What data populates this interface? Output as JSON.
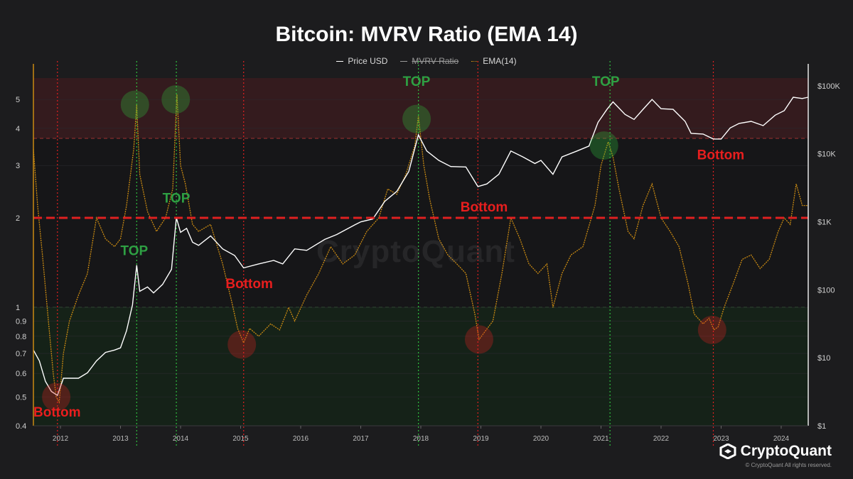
{
  "title": "Bitcoin: MVRV Ratio (EMA 14)",
  "legend": [
    {
      "label": "Price USD",
      "style": "solid-white",
      "struck": false
    },
    {
      "label": "MVRV Ratio",
      "style": "solid-grey",
      "struck": true
    },
    {
      "label": "EMA(14)",
      "style": "dotted-orange",
      "struck": false
    }
  ],
  "watermark": "CryptoQuant",
  "logo_text": "CryptoQuant",
  "copyright": "© CryptoQuant All rights reserved.",
  "colors": {
    "background": "#1c1c1e",
    "price": "#ffffff",
    "ema": "#c98a12",
    "top_zone": "#3a1c20",
    "bottom_zone": "#152419",
    "threshold_line": "#e02020",
    "bottom_marker": "#e02020",
    "top_marker": "#2fbf3f",
    "top_label": "#2ea043",
    "bottom_label": "#e81e1e"
  },
  "chart_data": {
    "type": "line",
    "x_axis": {
      "ticks": [
        "2012",
        "2013",
        "2014",
        "2015",
        "2016",
        "2017",
        "2018",
        "2019",
        "2020",
        "2021",
        "2022",
        "2023",
        "2024"
      ],
      "range": [
        2011.55,
        2024.45
      ]
    },
    "y_left": {
      "scale": "log",
      "ticks": [
        0.4,
        0.5,
        0.6,
        0.7,
        0.8,
        0.9,
        1,
        2,
        3,
        4,
        5
      ],
      "tick_labels": [
        "0.4",
        "0.5",
        "0.6",
        "0.7",
        "0.8",
        "0.9",
        "1",
        "2",
        "3",
        "4",
        "5"
      ],
      "range": [
        0.4,
        5.9
      ]
    },
    "y_right": {
      "scale": "log",
      "ticks": [
        1,
        10,
        100,
        1000,
        10000,
        100000
      ],
      "tick_labels": [
        "$1",
        "$10",
        "$100",
        "$1K",
        "$10K",
        "$100K"
      ],
      "range": [
        1,
        130000
      ]
    },
    "zones": [
      {
        "axis": "left",
        "from": 3.7,
        "to": 5.9,
        "kind": "top"
      },
      {
        "axis": "left",
        "from": 0.4,
        "to": 1.0,
        "kind": "bottom"
      }
    ],
    "threshold": {
      "axis": "left",
      "value": 2
    },
    "series": [
      {
        "name": "Price USD",
        "axis": "right",
        "points": [
          [
            2011.55,
            13
          ],
          [
            2011.65,
            9
          ],
          [
            2011.75,
            4.5
          ],
          [
            2011.85,
            3.2
          ],
          [
            2011.95,
            2.8
          ],
          [
            2012.05,
            5
          ],
          [
            2012.15,
            5
          ],
          [
            2012.3,
            5
          ],
          [
            2012.45,
            6
          ],
          [
            2012.6,
            9
          ],
          [
            2012.75,
            12
          ],
          [
            2012.9,
            13
          ],
          [
            2013.0,
            14
          ],
          [
            2013.1,
            25
          ],
          [
            2013.2,
            60
          ],
          [
            2013.27,
            230
          ],
          [
            2013.32,
            95
          ],
          [
            2013.45,
            110
          ],
          [
            2013.55,
            90
          ],
          [
            2013.7,
            120
          ],
          [
            2013.85,
            200
          ],
          [
            2013.93,
            1150
          ],
          [
            2014.0,
            700
          ],
          [
            2014.1,
            800
          ],
          [
            2014.2,
            500
          ],
          [
            2014.3,
            450
          ],
          [
            2014.5,
            620
          ],
          [
            2014.7,
            400
          ],
          [
            2014.9,
            320
          ],
          [
            2015.05,
            210
          ],
          [
            2015.3,
            240
          ],
          [
            2015.55,
            270
          ],
          [
            2015.7,
            240
          ],
          [
            2015.9,
            400
          ],
          [
            2016.1,
            380
          ],
          [
            2016.4,
            550
          ],
          [
            2016.6,
            650
          ],
          [
            2016.9,
            900
          ],
          [
            2017.0,
            1000
          ],
          [
            2017.2,
            1100
          ],
          [
            2017.4,
            2000
          ],
          [
            2017.6,
            2800
          ],
          [
            2017.8,
            5500
          ],
          [
            2017.96,
            19000
          ],
          [
            2018.1,
            11000
          ],
          [
            2018.3,
            8000
          ],
          [
            2018.5,
            6500
          ],
          [
            2018.75,
            6400
          ],
          [
            2018.95,
            3300
          ],
          [
            2019.1,
            3600
          ],
          [
            2019.3,
            5000
          ],
          [
            2019.5,
            11000
          ],
          [
            2019.7,
            9000
          ],
          [
            2019.9,
            7200
          ],
          [
            2020.0,
            8000
          ],
          [
            2020.2,
            5000
          ],
          [
            2020.35,
            9000
          ],
          [
            2020.6,
            11000
          ],
          [
            2020.8,
            13000
          ],
          [
            2020.95,
            29000
          ],
          [
            2021.1,
            45000
          ],
          [
            2021.2,
            58000
          ],
          [
            2021.4,
            38000
          ],
          [
            2021.55,
            32000
          ],
          [
            2021.7,
            45000
          ],
          [
            2021.85,
            63000
          ],
          [
            2022.0,
            46000
          ],
          [
            2022.2,
            45000
          ],
          [
            2022.4,
            30000
          ],
          [
            2022.5,
            20000
          ],
          [
            2022.7,
            19500
          ],
          [
            2022.87,
            16500
          ],
          [
            2023.0,
            16500
          ],
          [
            2023.15,
            24000
          ],
          [
            2023.3,
            28000
          ],
          [
            2023.5,
            30000
          ],
          [
            2023.7,
            26000
          ],
          [
            2023.9,
            37000
          ],
          [
            2024.05,
            43000
          ],
          [
            2024.2,
            68000
          ],
          [
            2024.35,
            65000
          ],
          [
            2024.45,
            68000
          ]
        ]
      },
      {
        "name": "EMA(14)",
        "axis": "left",
        "points": [
          [
            2011.55,
            3.4
          ],
          [
            2011.62,
            2.2
          ],
          [
            2011.7,
            1.5
          ],
          [
            2011.8,
            0.9
          ],
          [
            2011.88,
            0.6
          ],
          [
            2011.93,
            0.5
          ],
          [
            2011.98,
            0.48
          ],
          [
            2012.05,
            0.7
          ],
          [
            2012.15,
            0.9
          ],
          [
            2012.3,
            1.1
          ],
          [
            2012.45,
            1.3
          ],
          [
            2012.6,
            2.0
          ],
          [
            2012.75,
            1.7
          ],
          [
            2012.9,
            1.6
          ],
          [
            2013.0,
            1.7
          ],
          [
            2013.1,
            2.2
          ],
          [
            2013.22,
            3.4
          ],
          [
            2013.27,
            4.8
          ],
          [
            2013.32,
            2.8
          ],
          [
            2013.45,
            2.1
          ],
          [
            2013.6,
            1.8
          ],
          [
            2013.75,
            2.0
          ],
          [
            2013.87,
            2.5
          ],
          [
            2013.94,
            5.2
          ],
          [
            2014.0,
            3.0
          ],
          [
            2014.08,
            2.6
          ],
          [
            2014.2,
            1.9
          ],
          [
            2014.3,
            1.8
          ],
          [
            2014.5,
            1.9
          ],
          [
            2014.7,
            1.4
          ],
          [
            2014.85,
            1.05
          ],
          [
            2014.95,
            0.85
          ],
          [
            2015.05,
            0.76
          ],
          [
            2015.15,
            0.85
          ],
          [
            2015.3,
            0.8
          ],
          [
            2015.5,
            0.88
          ],
          [
            2015.65,
            0.84
          ],
          [
            2015.8,
            1.0
          ],
          [
            2015.9,
            0.9
          ],
          [
            2016.1,
            1.1
          ],
          [
            2016.3,
            1.3
          ],
          [
            2016.5,
            1.6
          ],
          [
            2016.7,
            1.4
          ],
          [
            2016.9,
            1.5
          ],
          [
            2017.1,
            1.8
          ],
          [
            2017.3,
            2.0
          ],
          [
            2017.45,
            2.5
          ],
          [
            2017.6,
            2.4
          ],
          [
            2017.75,
            2.8
          ],
          [
            2017.9,
            3.5
          ],
          [
            2017.96,
            4.4
          ],
          [
            2018.05,
            3.0
          ],
          [
            2018.15,
            2.3
          ],
          [
            2018.3,
            1.7
          ],
          [
            2018.45,
            1.5
          ],
          [
            2018.6,
            1.4
          ],
          [
            2018.75,
            1.3
          ],
          [
            2018.9,
            0.95
          ],
          [
            2018.97,
            0.78
          ],
          [
            2019.05,
            0.82
          ],
          [
            2019.2,
            0.9
          ],
          [
            2019.35,
            1.3
          ],
          [
            2019.5,
            2.0
          ],
          [
            2019.65,
            1.7
          ],
          [
            2019.8,
            1.4
          ],
          [
            2019.95,
            1.3
          ],
          [
            2020.1,
            1.4
          ],
          [
            2020.2,
            1.0
          ],
          [
            2020.35,
            1.3
          ],
          [
            2020.5,
            1.5
          ],
          [
            2020.7,
            1.6
          ],
          [
            2020.9,
            2.2
          ],
          [
            2021.0,
            3.0
          ],
          [
            2021.12,
            3.6
          ],
          [
            2021.2,
            3.2
          ],
          [
            2021.3,
            2.5
          ],
          [
            2021.45,
            1.8
          ],
          [
            2021.55,
            1.7
          ],
          [
            2021.7,
            2.2
          ],
          [
            2021.85,
            2.6
          ],
          [
            2022.0,
            2.0
          ],
          [
            2022.15,
            1.8
          ],
          [
            2022.3,
            1.6
          ],
          [
            2022.45,
            1.2
          ],
          [
            2022.55,
            0.95
          ],
          [
            2022.7,
            0.88
          ],
          [
            2022.8,
            0.92
          ],
          [
            2022.88,
            0.84
          ],
          [
            2022.95,
            0.86
          ],
          [
            2023.05,
            1.0
          ],
          [
            2023.2,
            1.2
          ],
          [
            2023.35,
            1.45
          ],
          [
            2023.5,
            1.5
          ],
          [
            2023.65,
            1.35
          ],
          [
            2023.8,
            1.45
          ],
          [
            2023.95,
            1.8
          ],
          [
            2024.05,
            2.0
          ],
          [
            2024.15,
            1.9
          ],
          [
            2024.25,
            2.6
          ],
          [
            2024.35,
            2.2
          ],
          [
            2024.45,
            2.2
          ]
        ]
      }
    ],
    "vlines": [
      {
        "x": 2011.95,
        "kind": "bottom"
      },
      {
        "x": 2013.27,
        "kind": "top"
      },
      {
        "x": 2013.93,
        "kind": "top"
      },
      {
        "x": 2015.05,
        "kind": "bottom"
      },
      {
        "x": 2017.96,
        "kind": "top"
      },
      {
        "x": 2018.95,
        "kind": "bottom"
      },
      {
        "x": 2021.15,
        "kind": "top"
      },
      {
        "x": 2022.87,
        "kind": "bottom"
      }
    ],
    "markers": [
      {
        "x": 2011.93,
        "y": 0.5,
        "kind": "bottom"
      },
      {
        "x": 2013.24,
        "y": 4.8,
        "kind": "top"
      },
      {
        "x": 2013.92,
        "y": 5.0,
        "kind": "top"
      },
      {
        "x": 2015.02,
        "y": 0.75,
        "kind": "bottom"
      },
      {
        "x": 2017.93,
        "y": 4.3,
        "kind": "top"
      },
      {
        "x": 2018.97,
        "y": 0.78,
        "kind": "bottom"
      },
      {
        "x": 2021.05,
        "y": 3.5,
        "kind": "top"
      },
      {
        "x": 2022.85,
        "y": 0.84,
        "kind": "bottom"
      }
    ],
    "annotations": [
      {
        "text": "Bottom",
        "x": 2011.55,
        "y": 0.43,
        "kind": "bottom"
      },
      {
        "text": "TOP",
        "x": 2013.0,
        "y": 1.5,
        "kind": "top"
      },
      {
        "text": "TOP",
        "x": 2013.7,
        "y": 2.25,
        "kind": "top"
      },
      {
        "text": "Bottom",
        "x": 2014.75,
        "y": 1.16,
        "kind": "bottom"
      },
      {
        "text": "TOP",
        "x": 2017.7,
        "y": 5.55,
        "kind": "top"
      },
      {
        "text": "Bottom",
        "x": 2018.66,
        "y": 2.1,
        "kind": "bottom"
      },
      {
        "text": "TOP",
        "x": 2020.85,
        "y": 5.55,
        "kind": "top"
      },
      {
        "text": "Bottom",
        "x": 2022.6,
        "y": 3.15,
        "kind": "bottom"
      }
    ]
  }
}
